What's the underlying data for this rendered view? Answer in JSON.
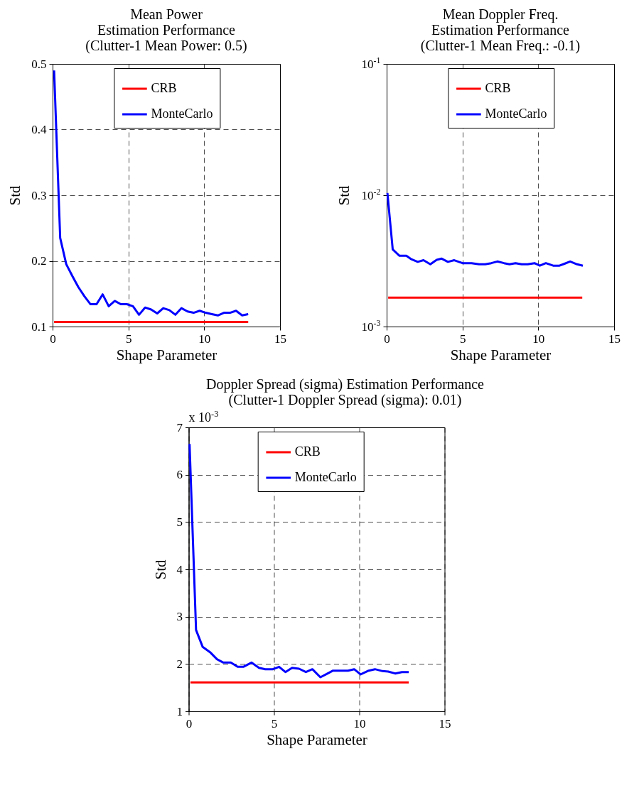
{
  "chart_data": [
    {
      "type": "line",
      "title": "Mean Power\nEstimation Performance\n(Clutter-1 Mean Power: 0.5)",
      "xlabel": "Shape Parameter",
      "ylabel": "Std",
      "xlim": [
        0,
        15
      ],
      "xticks": [
        0,
        5,
        10,
        15
      ],
      "ylim": [
        0.1,
        0.5
      ],
      "yticks": [
        0.1,
        0.2,
        0.3,
        0.4,
        0.5
      ],
      "grid": true,
      "legend": "top",
      "line_style": "solid",
      "series": [
        {
          "name": "CRB",
          "color": "#ff0000",
          "x": [
            0.1,
            12.9
          ],
          "values": [
            0.107,
            0.107
          ]
        },
        {
          "name": "MonteCarlo",
          "color": "#0000ff",
          "x": [
            0.1,
            0.5,
            0.9,
            1.3,
            1.7,
            2.1,
            2.5,
            2.9,
            3.3,
            3.7,
            4.1,
            4.5,
            4.9,
            5.3,
            5.7,
            6.1,
            6.5,
            6.9,
            7.3,
            7.7,
            8.1,
            8.5,
            8.9,
            9.3,
            9.7,
            10.1,
            10.5,
            10.9,
            11.3,
            11.7,
            12.1,
            12.5,
            12.9
          ],
          "values": [
            0.49,
            0.235,
            0.195,
            0.177,
            0.16,
            0.146,
            0.134,
            0.134,
            0.149,
            0.131,
            0.139,
            0.134,
            0.134,
            0.131,
            0.118,
            0.129,
            0.126,
            0.12,
            0.128,
            0.125,
            0.118,
            0.128,
            0.123,
            0.121,
            0.124,
            0.121,
            0.119,
            0.117,
            0.121,
            0.121,
            0.124,
            0.117,
            0.119
          ]
        }
      ]
    },
    {
      "type": "line",
      "title": "Mean Doppler Freq.\nEstimation Performance\n(Clutter-1 Mean Freq.: -0.1)",
      "xlabel": "Shape Parameter",
      "ylabel": "Std",
      "xlim": [
        0,
        15
      ],
      "xticks": [
        0,
        5,
        10,
        15
      ],
      "ylim": [
        0.001,
        0.1
      ],
      "yticks": [
        {
          "value": 0.001,
          "label": "10$^{-3}$"
        },
        {
          "value": 0.01,
          "label": "10$^{-2}$"
        },
        {
          "value": 0.1,
          "label": "10$^{-1}$"
        }
      ],
      "log": true,
      "grid": true,
      "legend": "top",
      "line_style": "solid",
      "series": [
        {
          "name": "CRB",
          "color": "#ff0000",
          "x": [
            0.1,
            12.9
          ],
          "values": [
            0.00166,
            0.00166
          ]
        },
        {
          "name": "MonteCarlo",
          "color": "#0000ff",
          "x": [
            0.05,
            0.4,
            0.85,
            1.3,
            1.6,
            2.05,
            2.43,
            2.88,
            3.3,
            3.63,
            4.04,
            4.46,
            5.0,
            5.6,
            6.1,
            6.5,
            6.9,
            7.3,
            7.74,
            8.1,
            8.5,
            8.9,
            9.3,
            9.75,
            10.1,
            10.5,
            10.98,
            11.4,
            11.7,
            12.1,
            12.56,
            12.94
          ],
          "values": [
            0.0104,
            0.00386,
            0.00346,
            0.00346,
            0.00327,
            0.00311,
            0.0032,
            0.00298,
            0.00322,
            0.00329,
            0.00311,
            0.0032,
            0.00304,
            0.00304,
            0.00298,
            0.00298,
            0.00304,
            0.00313,
            0.00304,
            0.00298,
            0.00304,
            0.00298,
            0.00298,
            0.00304,
            0.00291,
            0.00304,
            0.00291,
            0.00291,
            0.003,
            0.00313,
            0.00298,
            0.00291
          ]
        }
      ]
    },
    {
      "type": "line",
      "title": "Doppler Spread (sigma) Estimation Performance\n(Clutter-1 Doppler Spread (sigma): 0.01)",
      "xlabel": "Shape Parameter",
      "ylabel": "Std",
      "annotations": [
        "x 10$^{-3}$"
      ],
      "xlim": [
        0,
        15
      ],
      "xticks": [
        0,
        5,
        10,
        15
      ],
      "ylim": [
        1,
        7
      ],
      "yticks": [
        1,
        2,
        3,
        4,
        5,
        6,
        7
      ],
      "grid": true,
      "legend": "top",
      "line_style": "solid",
      "series": [
        {
          "name": "CRB",
          "color": "#ff0000",
          "x": [
            0.1,
            12.9
          ],
          "values": [
            1.61,
            1.61
          ]
        },
        {
          "name": "MonteCarlo",
          "color": "#0000ff",
          "x": [
            0.05,
            0.43,
            0.82,
            1.25,
            1.66,
            2.03,
            2.47,
            2.87,
            3.2,
            3.68,
            4.12,
            4.49,
            4.93,
            5.3,
            5.67,
            6.06,
            6.47,
            6.87,
            7.25,
            7.72,
            8.09,
            8.46,
            8.9,
            9.34,
            9.7,
            10.08,
            10.55,
            10.92,
            11.36,
            11.7,
            12.1,
            12.5,
            12.9
          ],
          "values": [
            6.65,
            2.72,
            2.36,
            2.25,
            2.1,
            2.03,
            2.03,
            1.94,
            1.94,
            2.03,
            1.92,
            1.89,
            1.89,
            1.94,
            1.83,
            1.92,
            1.9,
            1.83,
            1.89,
            1.72,
            1.79,
            1.86,
            1.86,
            1.86,
            1.89,
            1.78,
            1.86,
            1.89,
            1.85,
            1.84,
            1.8,
            1.83,
            1.83
          ]
        }
      ]
    }
  ]
}
